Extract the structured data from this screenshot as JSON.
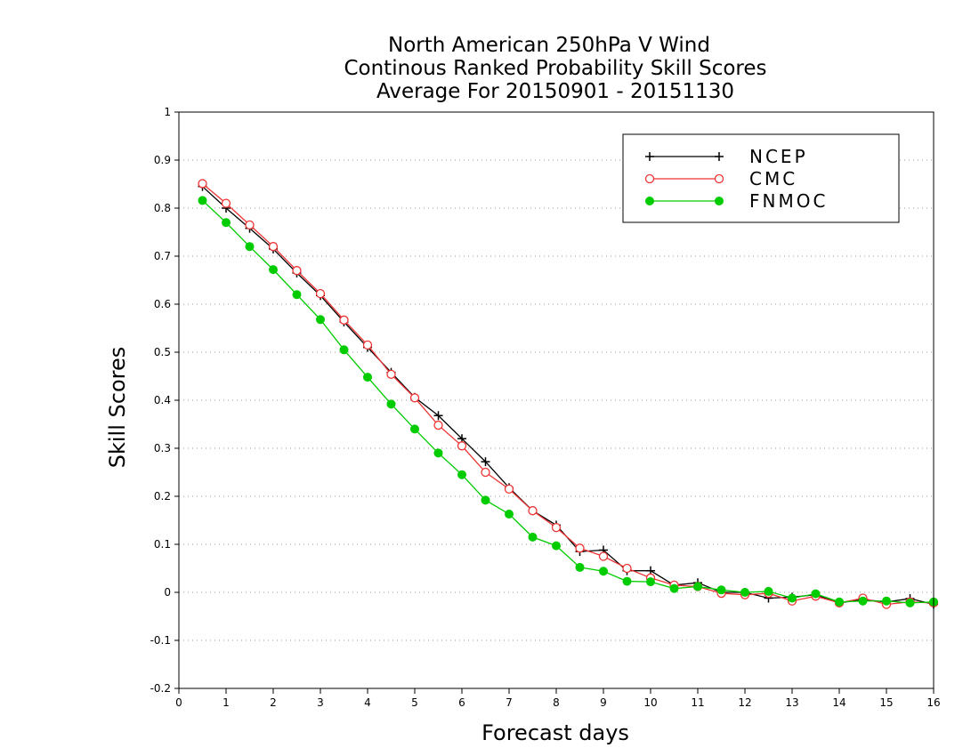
{
  "chart_data": {
    "type": "line",
    "title": [
      "North American 250hPa V Wind",
      "Continous Ranked Probability Skill Scores",
      "Average For 20150901 - 20151130"
    ],
    "xlabel": "Forecast days",
    "ylabel": "Skill Scores",
    "xlim": [
      0,
      16
    ],
    "ylim": [
      -0.2,
      1
    ],
    "xticks": [
      0,
      1,
      2,
      3,
      4,
      5,
      6,
      7,
      8,
      9,
      10,
      11,
      12,
      13,
      14,
      15,
      16
    ],
    "yticks": [
      -0.2,
      -0.1,
      0,
      0.1,
      0.2,
      0.3,
      0.4,
      0.5,
      0.6,
      0.7,
      0.8,
      0.9,
      1
    ],
    "ytick_labels": [
      "-0.2",
      "-0.1",
      "0",
      "0.1",
      "0.2",
      "0.3",
      "0.4",
      "0.5",
      "0.6",
      "0.7",
      "0.8",
      "0.9",
      "1"
    ],
    "grid": "horizontal-dotted",
    "legend_position": "top-right",
    "x": [
      0.5,
      1,
      1.5,
      2,
      2.5,
      3,
      3.5,
      4,
      4.5,
      5,
      5.5,
      6,
      6.5,
      7,
      7.5,
      8,
      8.5,
      9,
      9.5,
      10,
      10.5,
      11,
      11.5,
      12,
      12.5,
      13,
      13.5,
      14,
      14.5,
      15,
      15.5,
      16
    ],
    "series": [
      {
        "name": "NCEP",
        "color": "#000000",
        "marker": "plus",
        "values": [
          0.845,
          0.8,
          0.758,
          0.715,
          0.665,
          0.618,
          0.563,
          0.51,
          0.458,
          0.406,
          0.368,
          0.32,
          0.272,
          0.218,
          0.17,
          0.14,
          0.085,
          0.088,
          0.045,
          0.045,
          0.015,
          0.02,
          0.0,
          0.0,
          -0.012,
          -0.01,
          -0.005,
          -0.022,
          -0.015,
          -0.02,
          -0.013,
          -0.025
        ]
      },
      {
        "name": "CMC",
        "color": "#ee3333",
        "marker": "open-circle",
        "values": [
          0.851,
          0.81,
          0.765,
          0.72,
          0.67,
          0.622,
          0.567,
          0.515,
          0.454,
          0.405,
          0.348,
          0.305,
          0.25,
          0.215,
          0.17,
          0.135,
          0.092,
          0.075,
          0.05,
          0.03,
          0.015,
          0.012,
          -0.002,
          -0.005,
          -0.002,
          -0.018,
          -0.008,
          -0.022,
          -0.012,
          -0.025,
          -0.02,
          -0.022
        ]
      },
      {
        "name": "FNMOC",
        "color": "#00cc00",
        "marker": "filled-circle",
        "values": [
          0.816,
          0.77,
          0.72,
          0.672,
          0.62,
          0.568,
          0.505,
          0.448,
          0.392,
          0.34,
          0.29,
          0.245,
          0.192,
          0.163,
          0.115,
          0.097,
          0.052,
          0.044,
          0.023,
          0.022,
          0.008,
          0.012,
          0.005,
          0.0,
          0.002,
          -0.012,
          -0.003,
          -0.02,
          -0.018,
          -0.018,
          -0.022,
          -0.02
        ]
      }
    ]
  }
}
